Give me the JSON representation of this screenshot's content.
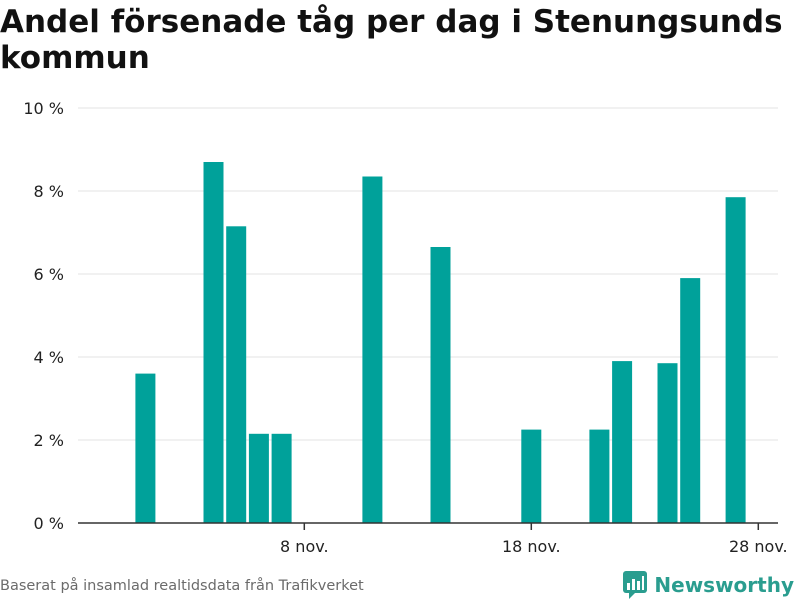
{
  "colors": {
    "bar": "#00a19a",
    "grid": "#e3e3e3",
    "axis": "#333333",
    "brand": "#2a9d8f"
  },
  "footer": {
    "source": "Baserat på insamlad realtidsdata från Trafikverket",
    "brand": "Newsworthy",
    "brand_icon": "newsworthy-logo-icon"
  },
  "chart_data": {
    "type": "bar",
    "title": "Andel försenade tåg per dag i Stenungsunds kommun",
    "xlabel": "",
    "ylabel": "",
    "ylim": [
      0,
      10
    ],
    "yticks": [
      0,
      2,
      4,
      6,
      8,
      10
    ],
    "ytick_labels": [
      "0 %",
      "2 %",
      "4 %",
      "6 %",
      "8 %",
      "10 %"
    ],
    "xlim": [
      "2023-10-30",
      "2023-12-01"
    ],
    "xtick_dates": [
      "2023-11-08",
      "2023-11-18",
      "2023-11-28"
    ],
    "xtick_labels": [
      "8 nov.",
      "18 nov.",
      "28 nov."
    ],
    "grid": true,
    "dates": [
      "2023-11-01",
      "2023-11-02",
      "2023-11-03",
      "2023-11-04",
      "2023-11-05",
      "2023-11-06",
      "2023-11-07",
      "2023-11-08",
      "2023-11-09",
      "2023-11-10",
      "2023-11-11",
      "2023-11-12",
      "2023-11-13",
      "2023-11-14",
      "2023-11-15",
      "2023-11-16",
      "2023-11-17",
      "2023-11-18",
      "2023-11-19",
      "2023-11-20",
      "2023-11-21",
      "2023-11-22",
      "2023-11-23",
      "2023-11-24",
      "2023-11-25",
      "2023-11-26",
      "2023-11-27",
      "2023-11-28",
      "2023-11-29"
    ],
    "values": [
      3.6,
      0,
      0,
      8.7,
      7.15,
      2.15,
      2.15,
      0,
      0,
      0,
      8.35,
      0,
      0,
      6.65,
      0,
      0,
      0,
      2.25,
      0,
      0,
      2.25,
      3.9,
      0,
      3.85,
      5.9,
      0,
      7.85,
      0,
      0
    ]
  }
}
